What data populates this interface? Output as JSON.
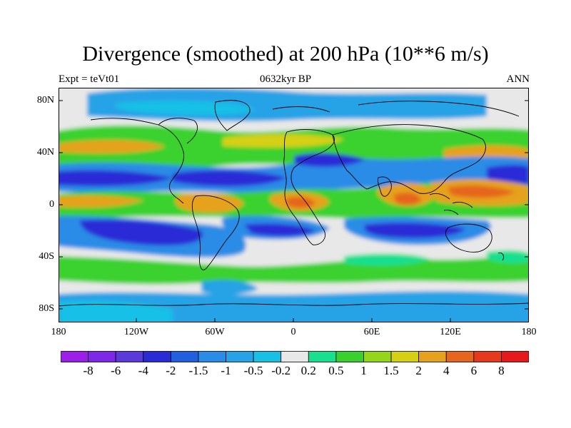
{
  "title": "Divergence (smoothed) at 200 hPa (10**6 m/s)",
  "left_subtitle": "Expt = teVt01",
  "center_subtitle": "0632kyr BP",
  "right_subtitle": "ANN",
  "y_ticks": [
    "80N",
    "40N",
    "0",
    "40S",
    "80S"
  ],
  "x_ticks": [
    "180",
    "120W",
    "60W",
    "0",
    "60E",
    "120E",
    "180"
  ],
  "colorbar": {
    "labels": [
      "-8",
      "-6",
      "-4",
      "-2",
      "-1.5",
      "-1",
      "-0.5",
      "-0.2",
      "0.2",
      "0.5",
      "1",
      "1.5",
      "2",
      "4",
      "6",
      "8"
    ],
    "colors": [
      "#9b1fe8",
      "#7d28e6",
      "#5a3ad9",
      "#2b2bd6",
      "#1f5fe0",
      "#2a8ce6",
      "#27a2e6",
      "#18c0e6",
      "#e8e8e8",
      "#19e08f",
      "#3ad12e",
      "#95d51a",
      "#d6d014",
      "#e6a21f",
      "#e6651f",
      "#e63a1f",
      "#e61a1a"
    ]
  },
  "map_colors": {
    "ocean_neutral": "#e8e8e8",
    "strong_convergence": "#2b2bd6",
    "moderate_convergence": "#2a8ce6",
    "weak_convergence": "#18c0e6",
    "weak_divergence": "#19e08f",
    "moderate_divergence": "#3ad12e",
    "strong_divergence": "#e6a21f",
    "peak_divergence": "#e6651f"
  }
}
